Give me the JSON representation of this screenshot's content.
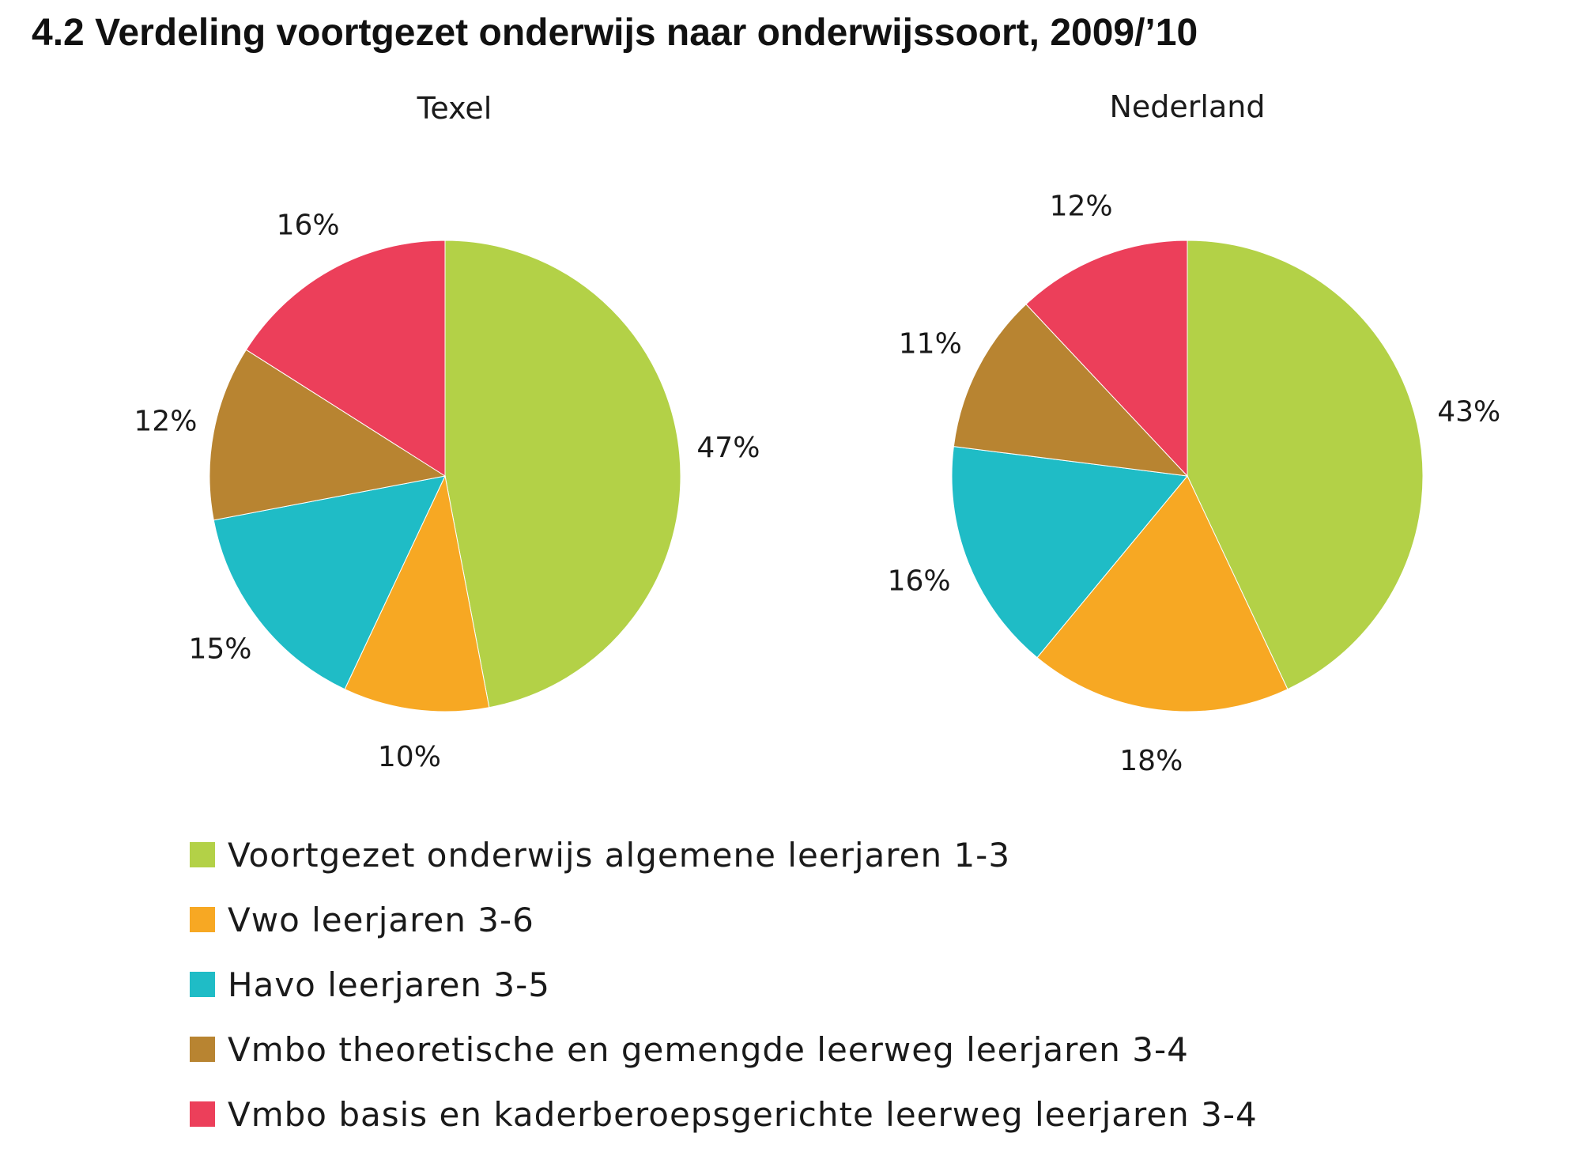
{
  "title": "4.2 Verdeling voortgezet onderwijs naar onderwijssoort, 2009/’10",
  "legend": [
    {
      "label": "Voortgezet onderwijs algemene leerjaren 1-3",
      "color": "#b3d147"
    },
    {
      "label": "Vwo leerjaren 3-6",
      "color": "#f7a823"
    },
    {
      "label": "Havo leerjaren 3-5",
      "color": "#1fbcc6"
    },
    {
      "label": "Vmbo theoretische en gemengde leerweg leerjaren 3-4",
      "color": "#b88431"
    },
    {
      "label": "Vmbo basis en kaderberoepsgerichte leerweg leerjaren 3-4",
      "color": "#ec3f5a"
    }
  ],
  "chart_data": [
    {
      "type": "pie",
      "title": "Texel",
      "categories": [
        "Voortgezet onderwijs algemene leerjaren 1-3",
        "Vwo leerjaren 3-6",
        "Havo leerjaren 3-5",
        "Vmbo theoretische en gemengde leerweg leerjaren 3-4",
        "Vmbo basis en kaderberoepsgerichte leerweg leerjaren 3-4"
      ],
      "values": [
        47,
        10,
        15,
        12,
        16
      ],
      "labels": [
        "47%",
        "10%",
        "15%",
        "12%",
        "16%"
      ],
      "colors": [
        "#b3d147",
        "#f7a823",
        "#1fbcc6",
        "#b88431",
        "#ec3f5a"
      ],
      "start": "top",
      "direction": "clockwise"
    },
    {
      "type": "pie",
      "title": "Nederland",
      "categories": [
        "Voortgezet onderwijs algemene leerjaren 1-3",
        "Vwo leerjaren 3-6",
        "Havo leerjaren 3-5",
        "Vmbo theoretische en gemengde leerweg leerjaren 3-4",
        "Vmbo basis en kaderberoepsgerichte leerweg leerjaren 3-4"
      ],
      "values": [
        43,
        18,
        16,
        11,
        12
      ],
      "labels": [
        "43%",
        "18%",
        "16%",
        "11%",
        "12%"
      ],
      "colors": [
        "#b3d147",
        "#f7a823",
        "#1fbcc6",
        "#b88431",
        "#ec3f5a"
      ],
      "start": "top",
      "direction": "clockwise"
    }
  ]
}
